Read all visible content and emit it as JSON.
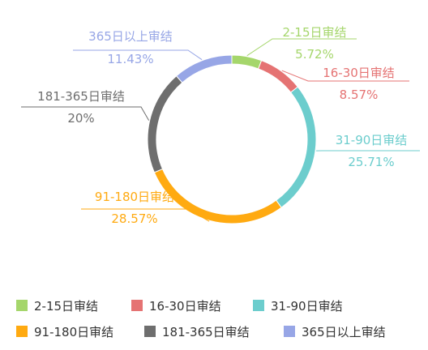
{
  "chart_data": {
    "type": "pie",
    "title": "",
    "legend_position": "bottom",
    "categories": [
      "2-15日审结",
      "16-30日审结",
      "31-90日审结",
      "91-180日审结",
      "181-365日审结",
      "365日以上审结"
    ],
    "values": [
      5.72,
      8.57,
      25.71,
      28.57,
      20,
      11.43
    ],
    "percent_labels": [
      "5.72%",
      "8.57%",
      "25.71%",
      "28.57%",
      "20%",
      "11.43%"
    ],
    "colors": [
      "#a5d66b",
      "#e57373",
      "#6ccdcd",
      "#ffaa11",
      "#6e6e6e",
      "#97a6e6"
    ]
  }
}
